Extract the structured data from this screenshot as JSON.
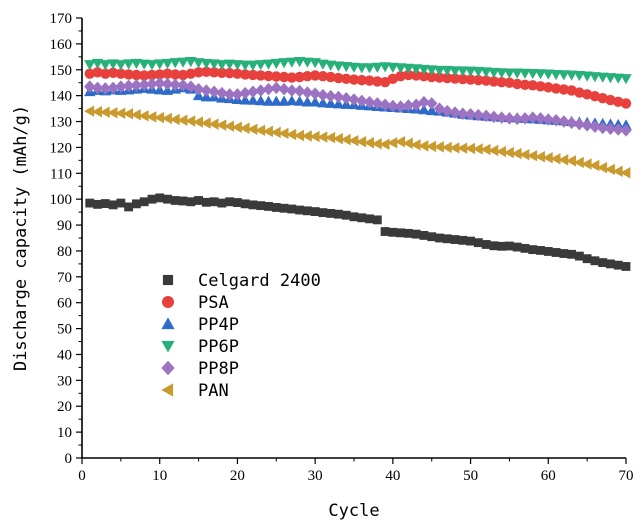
{
  "chart_data": {
    "type": "scatter",
    "xlabel": "Cycle",
    "ylabel": "Discharge capacity (mAh/g)",
    "xlim": [
      0,
      70
    ],
    "ylim": [
      0,
      170
    ],
    "x_ticks": [
      0,
      10,
      20,
      30,
      40,
      50,
      60,
      70
    ],
    "y_ticks": [
      0,
      10,
      20,
      30,
      40,
      50,
      60,
      70,
      80,
      90,
      100,
      110,
      120,
      130,
      140,
      150,
      160,
      170
    ],
    "grid": false,
    "legend_position": "center-left",
    "x": [
      1,
      2,
      3,
      4,
      5,
      6,
      7,
      8,
      9,
      10,
      11,
      12,
      13,
      14,
      15,
      16,
      17,
      18,
      19,
      20,
      21,
      22,
      23,
      24,
      25,
      26,
      27,
      28,
      29,
      30,
      31,
      32,
      33,
      34,
      35,
      36,
      37,
      38,
      39,
      40,
      41,
      42,
      43,
      44,
      45,
      46,
      47,
      48,
      49,
      50,
      51,
      52,
      53,
      54,
      55,
      56,
      57,
      58,
      59,
      60,
      61,
      62,
      63,
      64,
      65,
      66,
      67,
      68,
      69,
      70
    ],
    "series": [
      {
        "name": "Celgard 2400",
        "marker": "square",
        "color": "#3a3a3a",
        "values": [
          98.5,
          98,
          98.3,
          97.8,
          98.5,
          97,
          98.2,
          99,
          100,
          100.5,
          100,
          99.5,
          99.3,
          99,
          99.5,
          98.8,
          99,
          98.5,
          99,
          98.7,
          98.2,
          97.8,
          97.5,
          97.2,
          96.8,
          96.5,
          96.2,
          95.8,
          95.5,
          95.2,
          94.8,
          94.5,
          94.2,
          93.8,
          93.2,
          92.8,
          92.4,
          92,
          87.5,
          87.2,
          87,
          86.8,
          86.5,
          86,
          85.5,
          85,
          84.7,
          84.4,
          84.1,
          83.8,
          83.2,
          82.5,
          82,
          81.8,
          81.9,
          81.5,
          81,
          80.5,
          80.2,
          79.8,
          79.4,
          79,
          78.7,
          78,
          77,
          76.2,
          75.5,
          75,
          74.5,
          74
        ]
      },
      {
        "name": "PSA",
        "marker": "circle",
        "color": "#e8403c",
        "values": [
          148.5,
          149,
          148.5,
          148.8,
          148.5,
          148.2,
          148,
          147.8,
          148,
          148.2,
          148.5,
          148.2,
          148,
          148.5,
          149,
          149.2,
          149,
          148.8,
          148.7,
          148.5,
          148.2,
          148,
          147.8,
          147.6,
          147.4,
          147.2,
          147,
          147.2,
          147.5,
          147.8,
          147.5,
          147.2,
          146.8,
          146.5,
          146.2,
          146,
          145.8,
          145.5,
          145.2,
          146.5,
          147.5,
          148,
          147.8,
          147.5,
          147.2,
          147,
          146.8,
          146.6,
          146.4,
          146.2,
          146,
          145.8,
          145.5,
          145.2,
          145,
          144.5,
          144.2,
          144,
          143.6,
          143.2,
          142.8,
          142.4,
          142,
          141.2,
          140.5,
          139.8,
          139,
          138.3,
          137.6,
          137
        ]
      },
      {
        "name": "PP4P",
        "marker": "triangle-up",
        "color": "#2e6bc9",
        "values": [
          141.5,
          142,
          141.8,
          142.2,
          142,
          142.2,
          142.5,
          142.8,
          142.5,
          142.2,
          142,
          142.5,
          143,
          142.5,
          140,
          139.5,
          139.5,
          139,
          138.8,
          138.5,
          138.3,
          138.2,
          138,
          137.8,
          137.8,
          137.8,
          138,
          137.8,
          137.5,
          137.5,
          137.2,
          137,
          136.8,
          136.6,
          136.5,
          136.2,
          136,
          135.8,
          135.6,
          135.4,
          135.2,
          135,
          134.8,
          134.5,
          134.2,
          134,
          133.6,
          133.2,
          132.8,
          132.5,
          132.2,
          132,
          131.8,
          131.6,
          131.5,
          131.4,
          131.2,
          131,
          130.8,
          130.6,
          130.4,
          130.2,
          130,
          129.8,
          129.6,
          129.4,
          129.2,
          129,
          128.8,
          128.6
        ]
      },
      {
        "name": "PP6P",
        "marker": "triangle-down",
        "color": "#27b07a",
        "values": [
          152,
          152.5,
          152,
          152.3,
          152,
          152.3,
          152.5,
          152.2,
          152,
          152.3,
          152.5,
          152.8,
          153,
          153.2,
          152.8,
          152.5,
          152.3,
          152,
          152.2,
          152,
          151.8,
          151.8,
          152,
          152.2,
          152.5,
          152.8,
          153,
          153.2,
          153,
          152.8,
          152.2,
          151.8,
          151.5,
          151.3,
          151,
          150.8,
          150.8,
          151,
          151.2,
          151,
          150.8,
          150.6,
          150.4,
          150.2,
          150,
          149.8,
          149.8,
          149.6,
          149.6,
          149.5,
          149.4,
          149.2,
          149,
          148.9,
          148.8,
          148.8,
          148.7,
          148.6,
          148.5,
          148.4,
          148.2,
          148.1,
          148,
          147.8,
          147.6,
          147.4,
          147.2,
          147,
          146.8,
          146.6
        ]
      },
      {
        "name": "PP8P",
        "marker": "diamond",
        "color": "#9b73c2",
        "values": [
          143.5,
          143,
          142.8,
          143,
          143.5,
          143.8,
          144,
          144.2,
          144.5,
          144.8,
          144.5,
          144.2,
          144,
          143.5,
          142.5,
          142,
          141.5,
          141,
          140.5,
          140.5,
          141,
          141.5,
          142,
          142.5,
          143,
          142.5,
          142,
          141.8,
          141.2,
          140.8,
          140.2,
          139.8,
          139.5,
          139,
          138.5,
          138,
          137.5,
          137,
          136.5,
          136,
          135.8,
          136.2,
          136.5,
          137.5,
          137,
          135,
          134,
          133.5,
          133,
          132.8,
          132.5,
          132.2,
          131.8,
          131.5,
          131.2,
          131,
          131.2,
          131.5,
          131.2,
          130.8,
          130.5,
          130,
          129.5,
          129,
          128.5,
          128,
          127.5,
          127.2,
          126.9,
          126.6
        ]
      },
      {
        "name": "PAN",
        "marker": "triangle-left",
        "color": "#c99a2e",
        "values": [
          134,
          133.8,
          133.6,
          133.4,
          133.2,
          133,
          132.6,
          132.2,
          131.8,
          131.5,
          131.2,
          130.8,
          130.5,
          130.2,
          129.8,
          129.4,
          129,
          128.6,
          128.2,
          127.8,
          127.4,
          127,
          126.6,
          126.2,
          125.8,
          125.4,
          125,
          124.6,
          124.4,
          124.2,
          124,
          123.8,
          123.4,
          123,
          122.6,
          122.2,
          121.8,
          121.4,
          121.2,
          121.8,
          122.2,
          121.6,
          121,
          120.6,
          120.4,
          120.2,
          120,
          119.8,
          119.7,
          119.6,
          119.4,
          119.2,
          118.8,
          118.4,
          118,
          117.6,
          117.2,
          116.8,
          116.4,
          116,
          115.6,
          115.2,
          114.8,
          114.2,
          113.6,
          113,
          112.2,
          111.5,
          110.8,
          110.2
        ]
      }
    ]
  }
}
